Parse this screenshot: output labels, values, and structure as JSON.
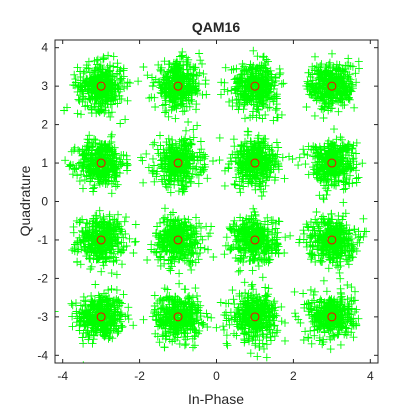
{
  "chart_data": {
    "type": "scatter",
    "title": "QAM16",
    "xlabel": "In-Phase",
    "ylabel": "Quadrature",
    "xlim": [
      -4.2,
      4.2
    ],
    "ylim": [
      -4.2,
      4.2
    ],
    "xticks": [
      "-4",
      "-2",
      "0",
      "2",
      "4"
    ],
    "yticks": [
      "4",
      "3",
      "2",
      "1",
      "0",
      "-1",
      "-2",
      "-3",
      "-4"
    ],
    "grid": false,
    "legend": "none",
    "colors": {
      "received": "#00ff00",
      "ideal": "#ff0000",
      "axis": "#262626"
    },
    "series": [
      {
        "marker": "plus",
        "color": "#00ff00",
        "noise_std": 0.3,
        "points_per_symbol": 380,
        "centers_x": [
          -3,
          -1,
          1,
          3
        ],
        "centers_y": [
          -3,
          -1,
          1,
          3
        ]
      },
      {
        "marker": "circle",
        "color": "#ff0000",
        "points": [
          [
            -3,
            3
          ],
          [
            -1,
            3
          ],
          [
            1,
            3
          ],
          [
            3,
            3
          ],
          [
            -3,
            1
          ],
          [
            -1,
            1
          ],
          [
            1,
            1
          ],
          [
            3,
            1
          ],
          [
            -3,
            -1
          ],
          [
            -1,
            -1
          ],
          [
            1,
            -1
          ],
          [
            3,
            -1
          ],
          [
            -3,
            -3
          ],
          [
            -1,
            -3
          ],
          [
            1,
            -3
          ],
          [
            3,
            -3
          ]
        ]
      }
    ]
  }
}
